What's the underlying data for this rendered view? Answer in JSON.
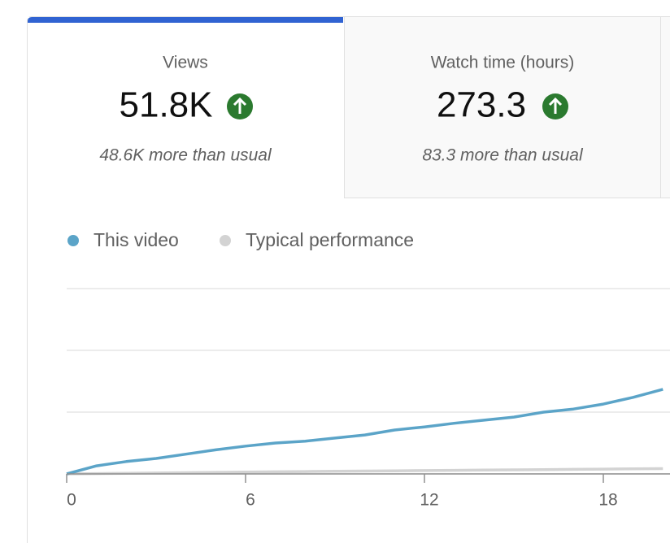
{
  "tabs": [
    {
      "title": "Views",
      "value": "51.8K",
      "note": "48.6K more than usual"
    },
    {
      "title": "Watch time (hours)",
      "value": "273.3",
      "note": "83.3 more than usual"
    }
  ],
  "chart_data": {
    "type": "line",
    "x": [
      0,
      1,
      2,
      3,
      4,
      5,
      6,
      7,
      8,
      9,
      10,
      11,
      12,
      13,
      14,
      15,
      16,
      17,
      18,
      19,
      20
    ],
    "series": [
      {
        "name": "This video",
        "color": "#5ba4c8",
        "values": [
          0,
          0.13,
          0.2,
          0.25,
          0.32,
          0.39,
          0.45,
          0.5,
          0.53,
          0.58,
          0.63,
          0.71,
          0.76,
          0.82,
          0.87,
          0.92,
          1.0,
          1.05,
          1.13,
          1.24,
          1.37
        ]
      },
      {
        "name": "Typical performance",
        "color": "#d3d3d3",
        "values": [
          0,
          0.005,
          0.01,
          0.015,
          0.02,
          0.025,
          0.03,
          0.034,
          0.038,
          0.042,
          0.046,
          0.05,
          0.054,
          0.058,
          0.062,
          0.066,
          0.07,
          0.074,
          0.078,
          0.082,
          0.086
        ]
      }
    ],
    "xlim": [
      0,
      20.25
    ],
    "xticks": [
      0,
      6,
      12,
      18
    ],
    "ylim": [
      0,
      3
    ],
    "yticks": [
      0,
      1,
      2,
      3
    ],
    "grid": true
  }
}
